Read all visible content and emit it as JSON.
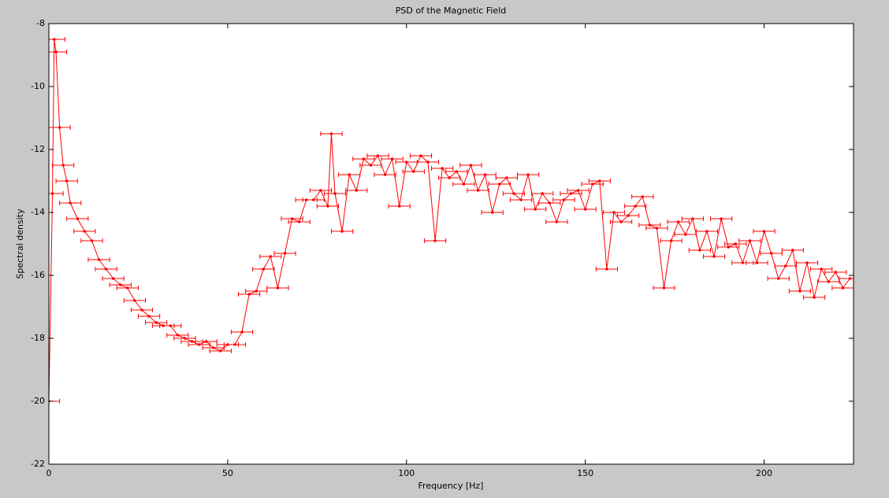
{
  "chart_data": {
    "type": "errorbar-line",
    "title": "PSD of the Magnetic Field",
    "x_label": "Frequency [Hz]",
    "y_label": "Spectral density",
    "xlim": [
      0,
      225
    ],
    "ylim": [
      -22,
      -8
    ],
    "xticks": [
      0,
      50,
      100,
      150,
      200
    ],
    "yticks": [
      -22,
      -20,
      -18,
      -16,
      -14,
      -12,
      -10,
      -8
    ],
    "grid": false,
    "xerr": 3,
    "x": [
      0,
      1,
      1.5,
      2,
      3,
      4,
      5,
      6,
      8,
      10,
      12,
      14,
      16,
      18,
      20,
      22,
      24,
      26,
      28,
      30,
      32,
      34,
      36,
      38,
      40,
      42,
      44,
      46,
      48,
      50,
      52,
      54,
      56,
      58,
      60,
      62,
      64,
      66,
      68,
      70,
      72,
      74,
      76,
      78,
      79,
      80,
      82,
      84,
      86,
      88,
      90,
      92,
      94,
      96,
      98,
      100,
      102,
      104,
      106,
      108,
      110,
      112,
      114,
      116,
      118,
      120,
      122,
      124,
      126,
      128,
      130,
      132,
      134,
      136,
      138,
      140,
      142,
      144,
      146,
      148,
      150,
      152,
      154,
      156,
      158,
      160,
      162,
      164,
      166,
      168,
      170,
      172,
      174,
      176,
      178,
      180,
      182,
      184,
      186,
      188,
      190,
      192,
      194,
      196,
      198,
      200,
      202,
      204,
      206,
      208,
      210,
      212,
      214,
      216,
      218,
      220,
      222,
      224
    ],
    "series": [
      {
        "color": "#ff0000",
        "values": [
          -20,
          -13.4,
          -8.5,
          -8.9,
          -11.3,
          -12.5,
          -13,
          -13.7,
          -14.2,
          -14.6,
          -14.9,
          -15.5,
          -15.8,
          -16.1,
          -16.3,
          -16.4,
          -16.8,
          -17.1,
          -17.3,
          -17.5,
          -17.6,
          -17.6,
          -17.9,
          -18,
          -18.1,
          -18.2,
          -18.1,
          -18.3,
          -18.4,
          -18.2,
          -18.2,
          -17.8,
          -16.6,
          -16.5,
          -15.8,
          -15.4,
          -16.4,
          -15.3,
          -14.2,
          -14.3,
          -13.6,
          -13.6,
          -13.3,
          -13.8,
          -11.5,
          -13.4,
          -14.6,
          -12.8,
          -13.3,
          -12.3,
          -12.5,
          -12.2,
          -12.8,
          -12.3,
          -13.8,
          -12.4,
          -12.7,
          -12.2,
          -12.4,
          -14.9,
          -12.6,
          -12.9,
          -12.7,
          -13.1,
          -12.5,
          -13.3,
          -12.8,
          -14,
          -13.1,
          -12.9,
          -13.4,
          -13.6,
          -12.8,
          -13.9,
          -13.4,
          -13.7,
          -14.3,
          -13.6,
          -13.4,
          -13.3,
          -13.9,
          -13.1,
          -13,
          -15.8,
          -14,
          -14.3,
          -14.1,
          -13.8,
          -13.5,
          -14.4,
          -14.5,
          -16.4,
          -14.9,
          -14.3,
          -14.7,
          -14.2,
          -15.2,
          -14.6,
          -15.4,
          -14.2,
          -15.1,
          -15,
          -15.6,
          -14.9,
          -15.6,
          -14.6,
          -15.3,
          -16.1,
          -15.7,
          -15.2,
          -16.5,
          -15.6,
          -16.7,
          -15.8,
          -16.2,
          -15.9,
          -16.4,
          -16.1
        ]
      }
    ]
  }
}
